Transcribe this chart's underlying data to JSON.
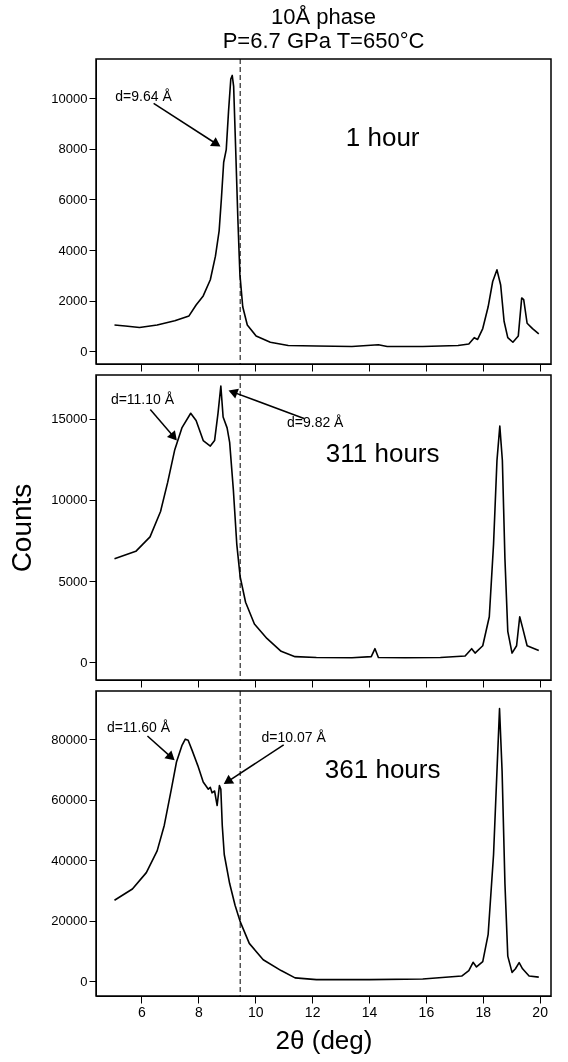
{
  "chart_data": [
    {
      "type": "line",
      "title": "10Å phase\nP=6.7 GPa   T=650°C",
      "xlim": [
        4.4,
        20.4
      ],
      "xticks": [
        6,
        8,
        10,
        12,
        14,
        16,
        18,
        20
      ],
      "ylim": [
        -500,
        11550
      ],
      "yticks": [
        0,
        2000,
        4000,
        6000,
        8000,
        10000
      ],
      "tick_labels": "y",
      "ref_lines": [
        {
          "axis": "x",
          "value": 9.47,
          "line_style": "dashed"
        }
      ],
      "annotations": [
        "1 hour",
        {
          "text": "d=9.64 Å",
          "x": 8.85,
          "y": 8040
        }
      ],
      "x": [
        5.05,
        5.43,
        5.93,
        6.55,
        7.17,
        7.67,
        7.92,
        8.17,
        8.42,
        8.6,
        8.73,
        8.81,
        8.89,
        8.98,
        9.06,
        9.14,
        9.19,
        9.24,
        9.31,
        9.39,
        9.46,
        9.56,
        9.72,
        10.03,
        10.53,
        11.16,
        12.15,
        13.4,
        14.33,
        14.64,
        15.89,
        17.13,
        17.51,
        17.7,
        17.82,
        18.0,
        18.19,
        18.35,
        18.5,
        18.63,
        18.75,
        18.88,
        19.06,
        19.25,
        19.37,
        19.44,
        19.56,
        19.75,
        19.97
      ],
      "values": [
        1040,
        1000,
        940,
        1040,
        1210,
        1400,
        1830,
        2190,
        2830,
        3760,
        4760,
        6040,
        7470,
        7970,
        9470,
        10760,
        10900,
        10470,
        8040,
        5190,
        3040,
        1760,
        1040,
        610,
        360,
        230,
        210,
        190,
        260,
        190,
        190,
        230,
        290,
        540,
        470,
        900,
        1760,
        2760,
        3220,
        2620,
        1190,
        540,
        360,
        610,
        2110,
        2040,
        1110,
        900,
        690
      ],
      "color": "#000000"
    },
    {
      "type": "line",
      "ylabel": "Counts",
      "xlim": [
        4.4,
        20.4
      ],
      "xticks": [
        6,
        8,
        10,
        12,
        14,
        16,
        18,
        20
      ],
      "ylim": [
        -1100,
        17700
      ],
      "yticks": [
        0,
        5000,
        10000,
        15000
      ],
      "tick_labels": "y",
      "ref_lines": [
        {
          "axis": "x",
          "value": 9.47,
          "line_style": "dashed"
        }
      ],
      "annotations": [
        "311 hours",
        {
          "text": "d=11.10 Å",
          "x": 7.3,
          "y": 13550
        },
        {
          "text": "d=9.82 Å",
          "x": 8.98,
          "y": 16800
        }
      ],
      "x": [
        5.05,
        5.8,
        6.3,
        6.67,
        6.92,
        7.17,
        7.42,
        7.73,
        7.92,
        8.17,
        8.42,
        8.57,
        8.69,
        8.79,
        8.87,
        9.01,
        9.1,
        9.23,
        9.35,
        9.47,
        9.66,
        9.97,
        10.41,
        10.91,
        11.4,
        12.15,
        13.4,
        14.08,
        14.21,
        14.33,
        15.27,
        16.51,
        17.38,
        17.61,
        17.73,
        18.0,
        18.23,
        18.38,
        18.5,
        18.6,
        18.69,
        18.78,
        18.88,
        19.03,
        19.19,
        19.3,
        19.4,
        19.56,
        19.97
      ],
      "values": [
        6380,
        6830,
        7720,
        9290,
        11080,
        13100,
        14440,
        15340,
        14890,
        13660,
        13320,
        13660,
        15340,
        17020,
        15110,
        14440,
        13550,
        10630,
        7280,
        5260,
        3690,
        2350,
        1460,
        670,
        340,
        290,
        270,
        340,
        830,
        290,
        270,
        290,
        380,
        830,
        560,
        1010,
        2800,
        7280,
        12430,
        14550,
        12430,
        6380,
        1900,
        560,
        1010,
        2800,
        2130,
        1010,
        720
      ],
      "color": "#000000"
    },
    {
      "type": "line",
      "xlabel": "2θ (deg)",
      "xlim": [
        4.4,
        20.4
      ],
      "xticks": [
        6,
        8,
        10,
        12,
        14,
        16,
        18,
        20
      ],
      "ylim": [
        -4800,
        96000
      ],
      "yticks": [
        0,
        20000,
        40000,
        60000,
        80000
      ],
      "ref_lines": [
        {
          "axis": "x",
          "value": 9.47,
          "line_style": "dashed"
        }
      ],
      "annotations": [
        "361 hours",
        {
          "text": "d=11.60 Å",
          "x": 7.23,
          "y": 72540
        },
        {
          "text": "d=10.07 Å",
          "x": 8.82,
          "y": 64800
        }
      ],
      "x": [
        5.05,
        5.68,
        6.17,
        6.55,
        6.8,
        7.05,
        7.23,
        7.42,
        7.54,
        7.64,
        7.79,
        7.98,
        8.17,
        8.35,
        8.42,
        8.48,
        8.57,
        8.66,
        8.74,
        8.79,
        8.84,
        8.91,
        9.1,
        9.29,
        9.47,
        9.79,
        10.28,
        10.91,
        11.4,
        12.15,
        14.02,
        15.89,
        17.26,
        17.51,
        17.66,
        17.78,
        18.0,
        18.19,
        18.38,
        18.5,
        18.59,
        18.68,
        18.78,
        18.88,
        19.03,
        19.15,
        19.28,
        19.4,
        19.63,
        19.97
      ],
      "values": [
        26860,
        30570,
        35970,
        43160,
        51560,
        63550,
        72540,
        77940,
        80090,
        79730,
        76140,
        71340,
        65940,
        63550,
        64150,
        62350,
        62950,
        58150,
        64750,
        63550,
        51560,
        41970,
        32370,
        25180,
        19780,
        12590,
        7190,
        3600,
        1200,
        600,
        600,
        840,
        1800,
        3600,
        6350,
        4800,
        6590,
        15590,
        41970,
        69540,
        90160,
        69540,
        32370,
        8390,
        3000,
        4200,
        6230,
        4200,
        1800,
        1440
      ],
      "color": "#000000"
    }
  ]
}
